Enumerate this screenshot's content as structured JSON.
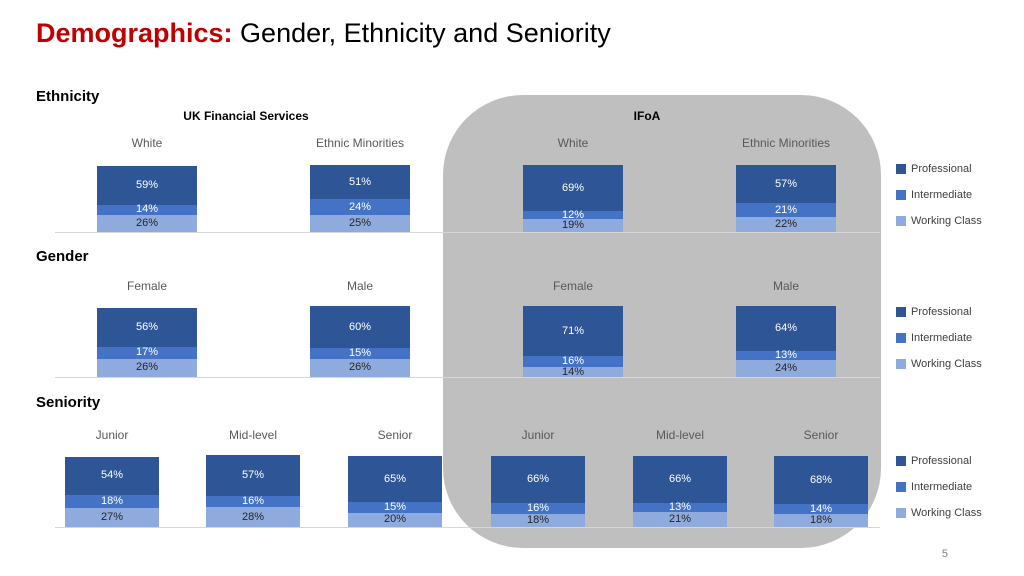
{
  "slide": {
    "title_accent": "Demographics:",
    "title_rest": " Gender, Ethnicity and Seniority",
    "page_number": "5"
  },
  "headers": {
    "left": "UK Financial Services",
    "right": "IFoA"
  },
  "legend": [
    "Professional",
    "Intermediate",
    "Working Class"
  ],
  "colors": {
    "professional": "#2E5596",
    "intermediate": "#4472C4",
    "working_class": "#8FAADC",
    "title_accent": "#C00000",
    "highlight_region": "#BFBFBF"
  },
  "chart_data": [
    {
      "type": "bar",
      "stacked": true,
      "section": "Ethnicity",
      "series": [
        "Professional",
        "Intermediate",
        "Working Class"
      ],
      "unit": "%",
      "panels": [
        {
          "name": "UK Financial Services",
          "categories": [
            "White",
            "Ethnic Minorities"
          ],
          "values": [
            [
              59,
              14,
              26
            ],
            [
              51,
              24,
              25
            ]
          ]
        },
        {
          "name": "IFoA",
          "categories": [
            "White",
            "Ethnic Minorities"
          ],
          "values": [
            [
              69,
              12,
              19
            ],
            [
              57,
              21,
              22
            ]
          ]
        }
      ]
    },
    {
      "type": "bar",
      "stacked": true,
      "section": "Gender",
      "series": [
        "Professional",
        "Intermediate",
        "Working Class"
      ],
      "unit": "%",
      "panels": [
        {
          "name": "UK Financial Services",
          "categories": [
            "Female",
            "Male"
          ],
          "values": [
            [
              56,
              17,
              26
            ],
            [
              60,
              15,
              26
            ]
          ]
        },
        {
          "name": "IFoA",
          "categories": [
            "Female",
            "Male"
          ],
          "values": [
            [
              71,
              16,
              14
            ],
            [
              64,
              13,
              24
            ]
          ]
        }
      ]
    },
    {
      "type": "bar",
      "stacked": true,
      "section": "Seniority",
      "series": [
        "Professional",
        "Intermediate",
        "Working Class"
      ],
      "unit": "%",
      "panels": [
        {
          "name": "UK Financial Services",
          "categories": [
            "Junior",
            "Mid-level",
            "Senior"
          ],
          "values": [
            [
              54,
              18,
              27
            ],
            [
              57,
              16,
              28
            ],
            [
              65,
              15,
              20
            ]
          ]
        },
        {
          "name": "IFoA",
          "categories": [
            "Junior",
            "Mid-level",
            "Senior"
          ],
          "values": [
            [
              66,
              16,
              18
            ],
            [
              66,
              13,
              21
            ],
            [
              68,
              14,
              18
            ]
          ]
        }
      ]
    }
  ]
}
